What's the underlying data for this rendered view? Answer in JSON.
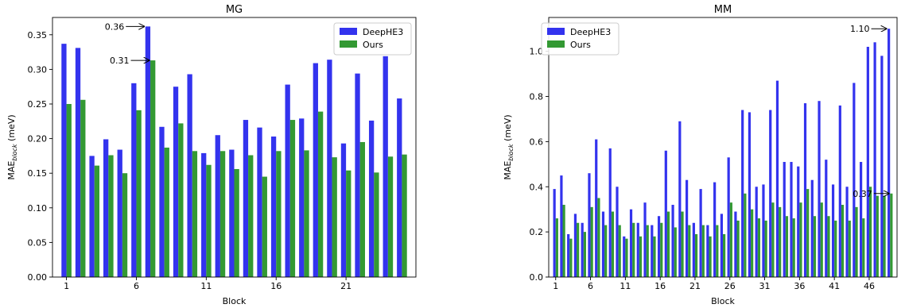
{
  "chart_data": [
    {
      "type": "bar",
      "title": "MG",
      "xlabel": "Block",
      "ylabel_main": "MAE",
      "ylabel_sub": "block",
      "ylabel_unit": " (meV)",
      "ylim": [
        0,
        0.375
      ],
      "yticks": [
        0.0,
        0.05,
        0.1,
        0.15,
        0.2,
        0.25,
        0.3,
        0.35
      ],
      "ytick_labels": [
        "0.00",
        "0.05",
        "0.10",
        "0.15",
        "0.20",
        "0.25",
        "0.30",
        "0.35"
      ],
      "xticks": [
        1,
        6,
        11,
        16,
        21
      ],
      "xtick_labels": [
        "1",
        "6",
        "11",
        "16",
        "21"
      ],
      "x": [
        1,
        2,
        3,
        4,
        5,
        6,
        7,
        8,
        9,
        10,
        11,
        12,
        13,
        14,
        15,
        16,
        17,
        18,
        19,
        20,
        21,
        22,
        23,
        24,
        25
      ],
      "legend_position": "top-right",
      "series": [
        {
          "name": "DeepHE3",
          "color": "#3333ee",
          "values": [
            0.337,
            0.331,
            0.175,
            0.199,
            0.184,
            0.28,
            0.362,
            0.217,
            0.275,
            0.293,
            0.179,
            0.205,
            0.184,
            0.227,
            0.216,
            0.203,
            0.278,
            0.229,
            0.309,
            0.314,
            0.193,
            0.294,
            0.226,
            0.319,
            0.258
          ]
        },
        {
          "name": "Ours",
          "color": "#339933",
          "values": [
            0.25,
            0.256,
            0.161,
            0.176,
            0.15,
            0.241,
            0.313,
            0.187,
            0.222,
            0.182,
            0.162,
            0.182,
            0.156,
            0.176,
            0.145,
            0.182,
            0.227,
            0.183,
            0.239,
            0.173,
            0.154,
            0.195,
            0.151,
            0.174,
            0.177
          ]
        }
      ],
      "annotations": [
        {
          "text": "0.36",
          "x": 7,
          "y": 0.362,
          "series": 0
        },
        {
          "text": "0.31",
          "x": 7,
          "y": 0.313,
          "series": 1
        }
      ]
    },
    {
      "type": "bar",
      "title": "MM",
      "xlabel": "Block",
      "ylabel_main": "MAE",
      "ylabel_sub": "block",
      "ylabel_unit": " (meV)",
      "ylim": [
        0,
        1.15
      ],
      "yticks": [
        0.0,
        0.2,
        0.4,
        0.6,
        0.8,
        1.0
      ],
      "ytick_labels": [
        "0.0",
        "0.2",
        "0.4",
        "0.6",
        "0.8",
        "1.0"
      ],
      "xticks": [
        1,
        6,
        11,
        16,
        21,
        26,
        31,
        36,
        41,
        46
      ],
      "xtick_labels": [
        "1",
        "6",
        "11",
        "16",
        "21",
        "26",
        "31",
        "36",
        "41",
        "46"
      ],
      "x": [
        1,
        2,
        3,
        4,
        5,
        6,
        7,
        8,
        9,
        10,
        11,
        12,
        13,
        14,
        15,
        16,
        17,
        18,
        19,
        20,
        21,
        22,
        23,
        24,
        25,
        26,
        27,
        28,
        29,
        30,
        31,
        32,
        33,
        34,
        35,
        36,
        37,
        38,
        39,
        40,
        41,
        42,
        43,
        44,
        45,
        46,
        47,
        48,
        49
      ],
      "legend_position": "top-left",
      "series": [
        {
          "name": "DeepHE3",
          "color": "#3333ee",
          "values": [
            0.39,
            0.45,
            0.19,
            0.28,
            0.24,
            0.46,
            0.61,
            0.29,
            0.57,
            0.4,
            0.18,
            0.3,
            0.24,
            0.33,
            0.23,
            0.27,
            0.56,
            0.32,
            0.69,
            0.43,
            0.24,
            0.39,
            0.23,
            0.42,
            0.28,
            0.53,
            0.29,
            0.74,
            0.73,
            0.4,
            0.41,
            0.74,
            0.87,
            0.51,
            0.51,
            0.49,
            0.77,
            0.43,
            0.78,
            0.52,
            0.41,
            0.76,
            0.4,
            0.86,
            0.51,
            1.02,
            1.04,
            0.98,
            1.1
          ]
        },
        {
          "name": "Ours",
          "color": "#339933",
          "values": [
            0.26,
            0.32,
            0.17,
            0.24,
            0.2,
            0.31,
            0.35,
            0.23,
            0.29,
            0.23,
            0.17,
            0.24,
            0.18,
            0.23,
            0.18,
            0.24,
            0.29,
            0.22,
            0.29,
            0.23,
            0.19,
            0.23,
            0.18,
            0.23,
            0.19,
            0.33,
            0.25,
            0.37,
            0.3,
            0.26,
            0.25,
            0.33,
            0.31,
            0.27,
            0.26,
            0.33,
            0.39,
            0.27,
            0.33,
            0.27,
            0.25,
            0.32,
            0.25,
            0.31,
            0.26,
            0.4,
            0.36,
            0.36,
            0.37
          ]
        }
      ],
      "annotations": [
        {
          "text": "1.10",
          "x": 49,
          "y": 1.1,
          "series": 0
        },
        {
          "text": "0.37",
          "x": 49,
          "y": 0.37,
          "series": 1
        }
      ]
    }
  ]
}
